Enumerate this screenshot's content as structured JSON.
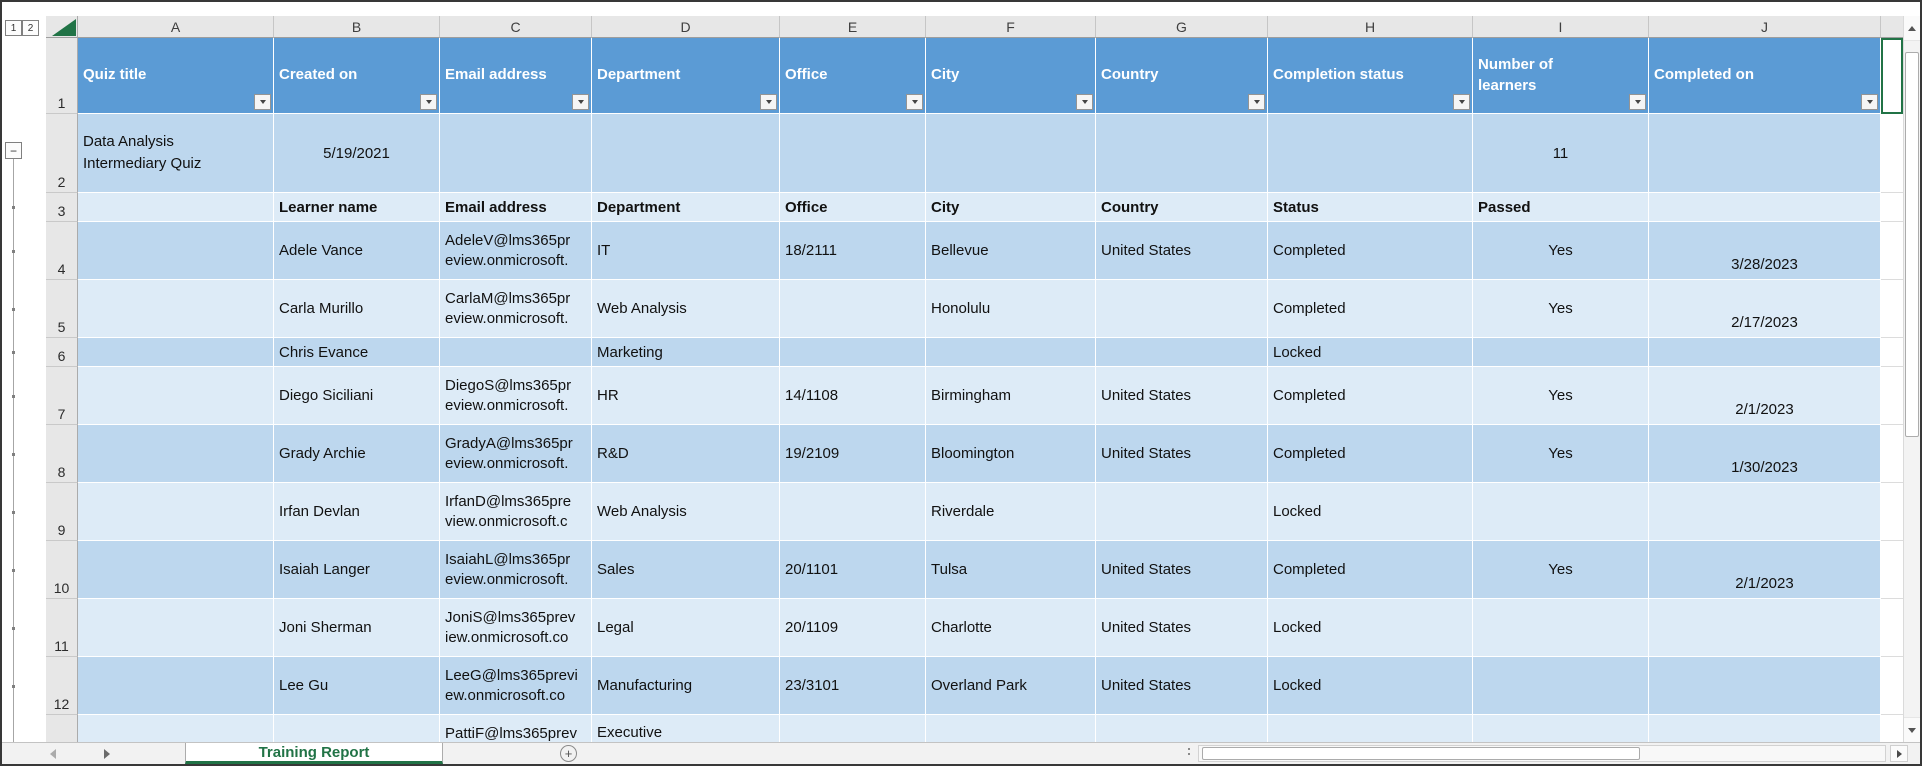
{
  "colors": {
    "table_header_bg": "#5B9BD5",
    "band_dark": "#BDD7EE",
    "band_light": "#DDEBF7",
    "accent_green": "#217346"
  },
  "outline": {
    "level_1": "1",
    "level_2": "2",
    "collapse": "−"
  },
  "column_letters": [
    "A",
    "B",
    "C",
    "D",
    "E",
    "F",
    "G",
    "H",
    "I",
    "J"
  ],
  "row_numbers": [
    "1",
    "2",
    "3",
    "4",
    "5",
    "6",
    "7",
    "8",
    "9",
    "10",
    "11",
    "12"
  ],
  "table_header": [
    "Quiz title",
    "Created on",
    "Email address",
    "Department",
    "Office",
    "City",
    "Country",
    "Completion status",
    "Number of\nlearners",
    "Completed on"
  ],
  "summary_row": {
    "quiz_title": "Data Analysis\nIntermediary Quiz",
    "created_on": "5/19/2021",
    "number_of_learners": "11"
  },
  "subheader": {
    "learner_name": "Learner name",
    "email": "Email address",
    "department": "Department",
    "office": "Office",
    "city": "City",
    "country": "Country",
    "status": "Status",
    "passed": "Passed"
  },
  "learners": [
    {
      "name": "Adele Vance",
      "email": "AdeleV@lms365pr\neview.onmicrosoft.",
      "department": "IT",
      "office": "18/2111",
      "city": "Bellevue",
      "country": "United States",
      "status": "Completed",
      "passed": "Yes",
      "completed_on": "3/28/2023"
    },
    {
      "name": "Carla Murillo",
      "email": "CarlaM@lms365pr\neview.onmicrosoft.",
      "department": "Web Analysis",
      "office": "",
      "city": "Honolulu",
      "country": "",
      "status": "Completed",
      "passed": "Yes",
      "completed_on": "2/17/2023"
    },
    {
      "name": "Chris Evance",
      "email": "",
      "department": "Marketing",
      "office": "",
      "city": "",
      "country": "",
      "status": "Locked",
      "passed": "",
      "completed_on": ""
    },
    {
      "name": "Diego Siciliani",
      "email": "DiegoS@lms365pr\neview.onmicrosoft.",
      "department": "HR",
      "office": "14/1108",
      "city": "Birmingham",
      "country": "United States",
      "status": "Completed",
      "passed": "Yes",
      "completed_on": "2/1/2023"
    },
    {
      "name": "Grady Archie",
      "email": "GradyA@lms365pr\neview.onmicrosoft.",
      "department": "R&D",
      "office": "19/2109",
      "city": "Bloomington",
      "country": "United States",
      "status": "Completed",
      "passed": "Yes",
      "completed_on": "1/30/2023"
    },
    {
      "name": "Irfan Devlan",
      "email": "IrfanD@lms365pre\nview.onmicrosoft.c",
      "department": "Web Analysis",
      "office": "",
      "city": "Riverdale",
      "country": "",
      "status": "Locked",
      "passed": "",
      "completed_on": ""
    },
    {
      "name": "Isaiah Langer",
      "email": "IsaiahL@lms365pr\neview.onmicrosoft.",
      "department": "Sales",
      "office": "20/1101",
      "city": "Tulsa",
      "country": "United States",
      "status": "Completed",
      "passed": "Yes",
      "completed_on": "2/1/2023"
    },
    {
      "name": "Joni Sherman",
      "email": "JoniS@lms365prev\niew.onmicrosoft.co",
      "department": "Legal",
      "office": "20/1109",
      "city": "Charlotte",
      "country": "United States",
      "status": "Locked",
      "passed": "",
      "completed_on": ""
    },
    {
      "name": "Lee Gu",
      "email": "LeeG@lms365previ\new.onmicrosoft.co",
      "department": "Manufacturing",
      "office": "23/3101",
      "city": "Overland Park",
      "country": "United States",
      "status": "Locked",
      "passed": "",
      "completed_on": ""
    }
  ],
  "partial_row": {
    "email": "PattiF@lms365prev",
    "department": "Executive"
  },
  "sheet_tabs": {
    "active_tab": "Training Report",
    "add_sheet": "+"
  }
}
